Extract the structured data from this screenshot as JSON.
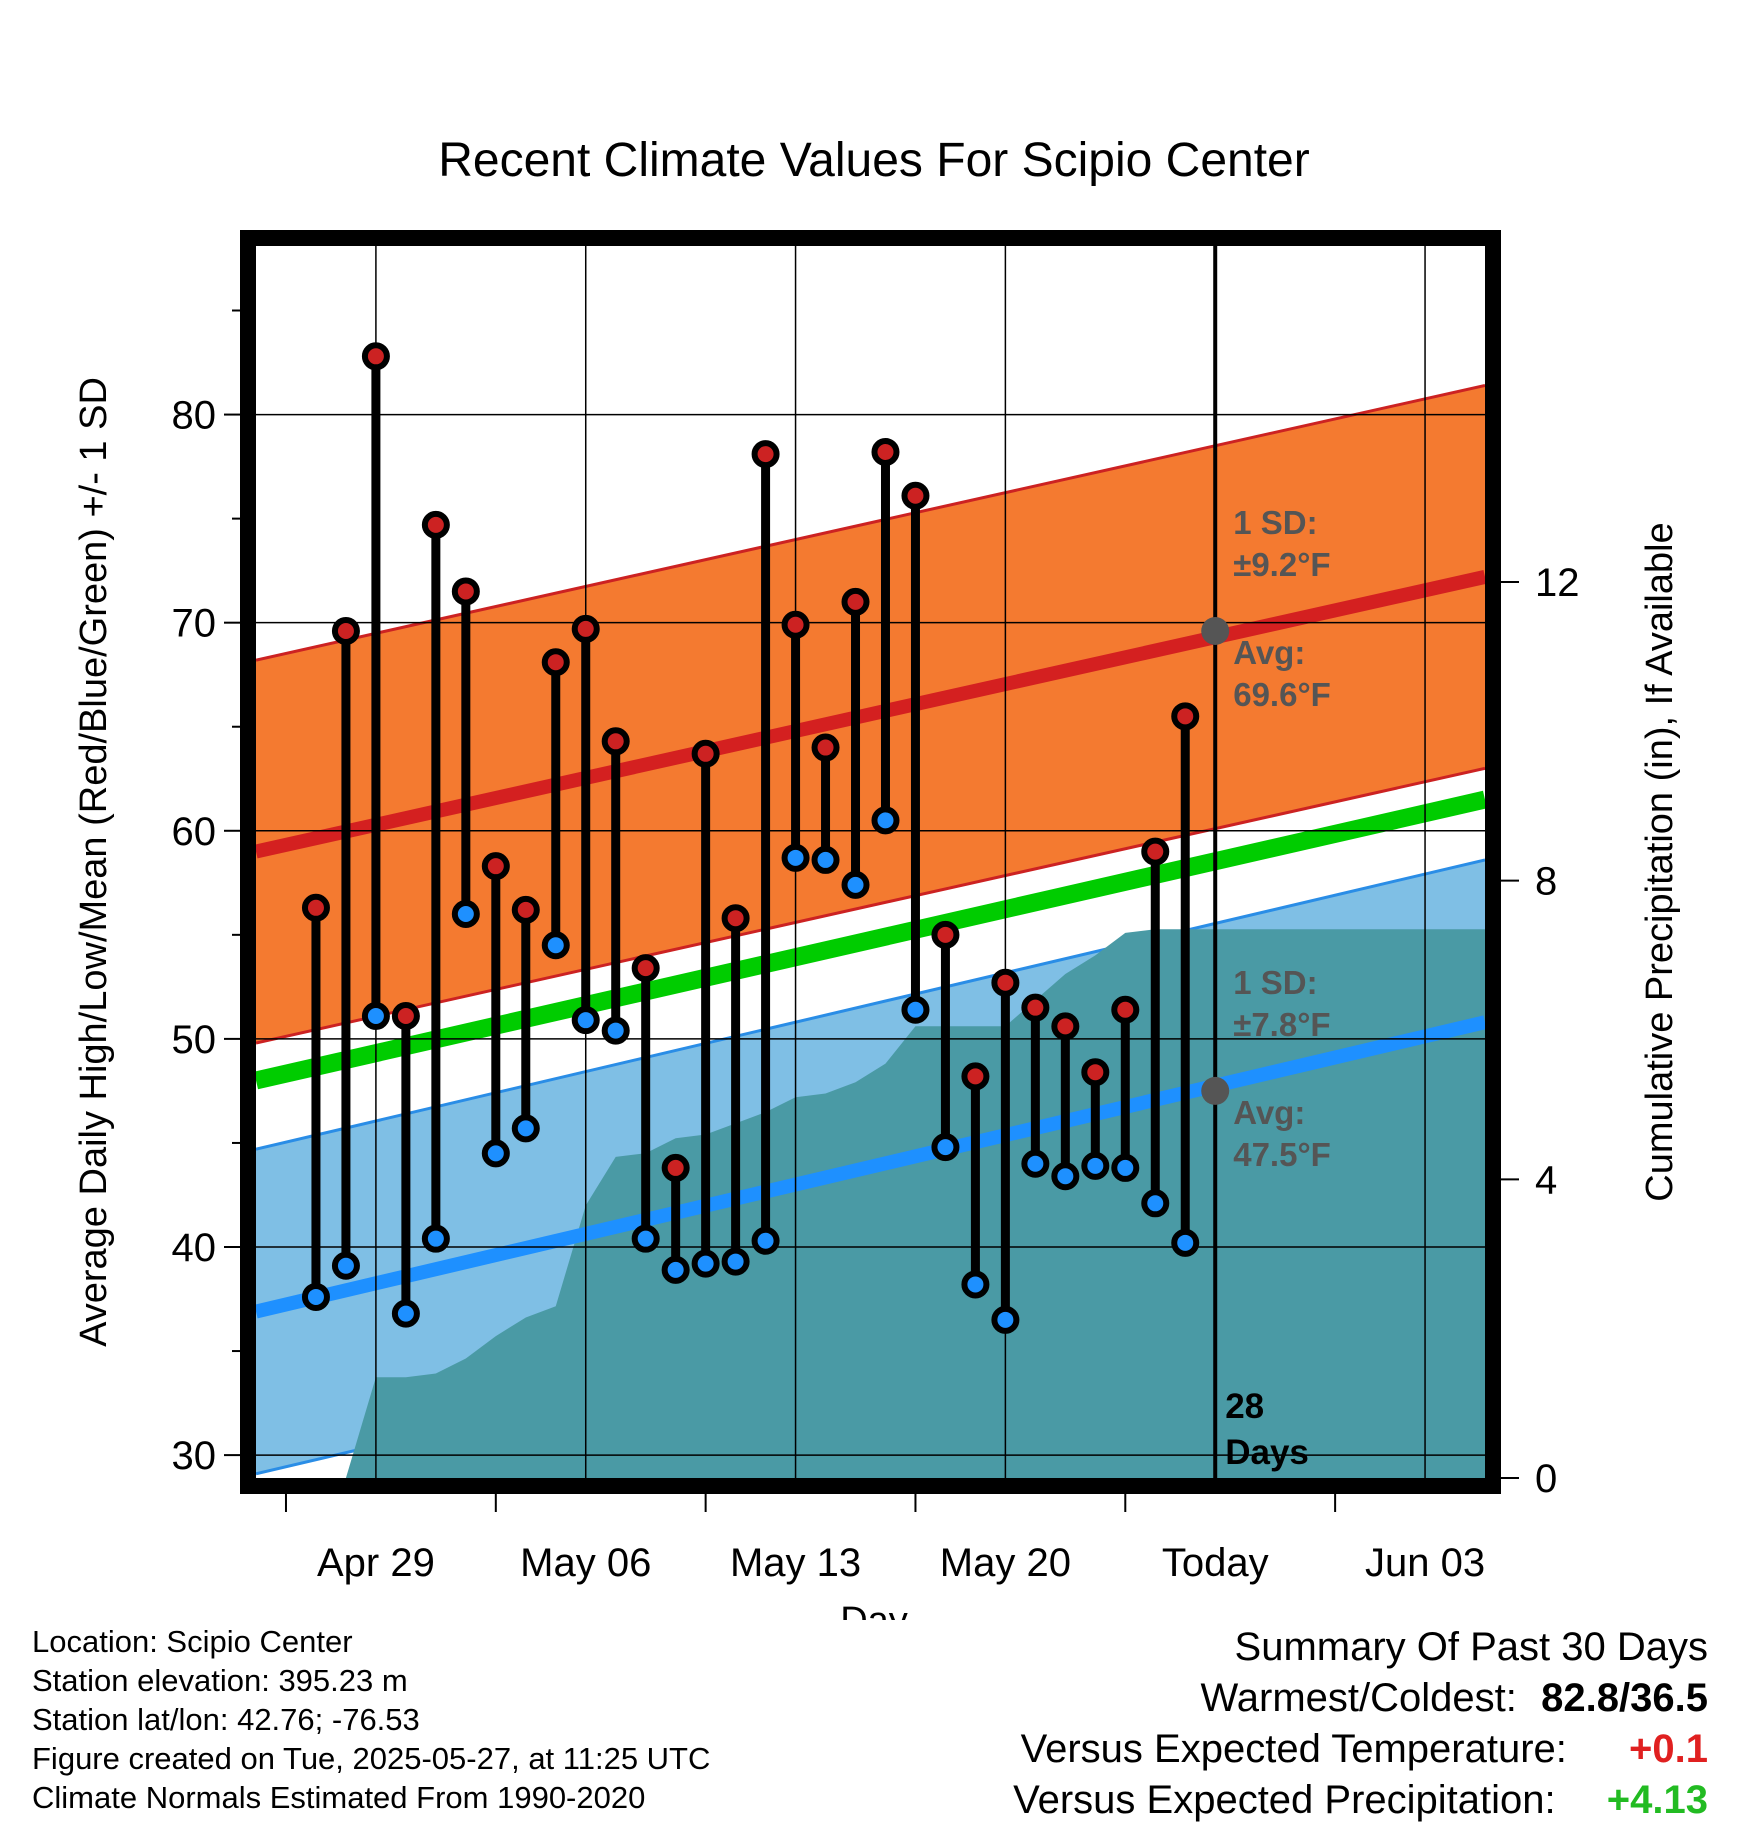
{
  "chart_data": {
    "type": "line",
    "title": "Recent Climate Values For Scipio Center",
    "xlabel": "Day",
    "ylabel": "Average Daily High/Low/Mean (Red/Blue/Green) +/- 1 SD",
    "y2label": "Cumulative Precipitation (in), If Available",
    "ylim": [
      28.9,
      88.1
    ],
    "y2lim": [
      0,
      16.5
    ],
    "y_ticks": [
      30,
      40,
      50,
      60,
      70,
      80
    ],
    "y2_ticks": [
      0,
      4,
      8,
      12
    ],
    "x_ticks": [
      {
        "date": "2025-04-29",
        "label": "Apr 29"
      },
      {
        "date": "2025-05-06",
        "label": "May 06"
      },
      {
        "date": "2025-05-13",
        "label": "May 13"
      },
      {
        "date": "2025-05-20",
        "label": "May 20"
      },
      {
        "date": "2025-05-27",
        "label": "Today"
      },
      {
        "date": "2025-06-03",
        "label": "Jun 03"
      }
    ],
    "xlim": [
      "2025-04-25",
      "2025-06-05"
    ],
    "today": "2025-05-27",
    "days_label_number": "28",
    "days_label_text": "Days",
    "normals": {
      "high_avg_start": 59.0,
      "high_avg_end": 72.2,
      "high_sd": 9.2,
      "low_avg_start": 36.9,
      "low_avg_end": 50.8,
      "low_sd": 7.8,
      "mean_start": 48.0,
      "mean_end": 61.5
    },
    "annotations": {
      "high_sd_label": "1 SD:",
      "high_sd_value": "±9.2°F",
      "high_avg_label": "Avg:",
      "high_avg_value": "69.6°F",
      "high_today_avg": 69.6,
      "low_sd_label": "1 SD:",
      "low_sd_value": "±7.8°F",
      "low_avg_label": "Avg:",
      "low_avg_value": "47.5°F",
      "low_today_avg": 47.5
    },
    "series": [
      {
        "name": "High",
        "values": [
          {
            "date": "2025-04-27",
            "value": 56.3
          },
          {
            "date": "2025-04-28",
            "value": 69.6
          },
          {
            "date": "2025-04-29",
            "value": 82.8
          },
          {
            "date": "2025-04-30",
            "value": 51.1
          },
          {
            "date": "2025-05-01",
            "value": 74.7
          },
          {
            "date": "2025-05-02",
            "value": 71.5
          },
          {
            "date": "2025-05-03",
            "value": 58.3
          },
          {
            "date": "2025-05-04",
            "value": 56.2
          },
          {
            "date": "2025-05-05",
            "value": 68.1
          },
          {
            "date": "2025-05-06",
            "value": 69.7
          },
          {
            "date": "2025-05-07",
            "value": 64.3
          },
          {
            "date": "2025-05-08",
            "value": 53.4
          },
          {
            "date": "2025-05-09",
            "value": 43.8
          },
          {
            "date": "2025-05-10",
            "value": 63.7
          },
          {
            "date": "2025-05-11",
            "value": 55.8
          },
          {
            "date": "2025-05-12",
            "value": 78.1
          },
          {
            "date": "2025-05-13",
            "value": 69.9
          },
          {
            "date": "2025-05-14",
            "value": 64.0
          },
          {
            "date": "2025-05-15",
            "value": 71.0
          },
          {
            "date": "2025-05-16",
            "value": 78.2
          },
          {
            "date": "2025-05-17",
            "value": 76.1
          },
          {
            "date": "2025-05-18",
            "value": 55.0
          },
          {
            "date": "2025-05-19",
            "value": 48.2
          },
          {
            "date": "2025-05-20",
            "value": 52.7
          },
          {
            "date": "2025-05-21",
            "value": 51.5
          },
          {
            "date": "2025-05-22",
            "value": 50.6
          },
          {
            "date": "2025-05-23",
            "value": 48.4
          },
          {
            "date": "2025-05-24",
            "value": 51.4
          },
          {
            "date": "2025-05-25",
            "value": 59.0
          },
          {
            "date": "2025-05-26",
            "value": 65.5
          }
        ]
      },
      {
        "name": "Low",
        "values": [
          {
            "date": "2025-04-27",
            "value": 37.6
          },
          {
            "date": "2025-04-28",
            "value": 39.1
          },
          {
            "date": "2025-04-29",
            "value": 51.1
          },
          {
            "date": "2025-04-30",
            "value": 36.8
          },
          {
            "date": "2025-05-01",
            "value": 40.4
          },
          {
            "date": "2025-05-02",
            "value": 56.0
          },
          {
            "date": "2025-05-03",
            "value": 44.5
          },
          {
            "date": "2025-05-04",
            "value": 45.7
          },
          {
            "date": "2025-05-05",
            "value": 54.5
          },
          {
            "date": "2025-05-06",
            "value": 50.9
          },
          {
            "date": "2025-05-07",
            "value": 50.4
          },
          {
            "date": "2025-05-08",
            "value": 40.4
          },
          {
            "date": "2025-05-09",
            "value": 38.9
          },
          {
            "date": "2025-05-10",
            "value": 39.2
          },
          {
            "date": "2025-05-11",
            "value": 39.3
          },
          {
            "date": "2025-05-12",
            "value": 40.3
          },
          {
            "date": "2025-05-13",
            "value": 58.7
          },
          {
            "date": "2025-05-14",
            "value": 58.6
          },
          {
            "date": "2025-05-15",
            "value": 57.4
          },
          {
            "date": "2025-05-16",
            "value": 60.5
          },
          {
            "date": "2025-05-17",
            "value": 51.4
          },
          {
            "date": "2025-05-18",
            "value": 44.8
          },
          {
            "date": "2025-05-19",
            "value": 38.2
          },
          {
            "date": "2025-05-20",
            "value": 36.5
          },
          {
            "date": "2025-05-21",
            "value": 44.0
          },
          {
            "date": "2025-05-22",
            "value": 43.4
          },
          {
            "date": "2025-05-23",
            "value": 43.9
          },
          {
            "date": "2025-05-24",
            "value": 43.8
          },
          {
            "date": "2025-05-25",
            "value": 42.1
          },
          {
            "date": "2025-05-26",
            "value": 40.2
          }
        ]
      }
    ],
    "cumulative_precipitation": [
      {
        "date": "2025-04-27",
        "value": 0.0
      },
      {
        "date": "2025-04-28",
        "value": 0.0
      },
      {
        "date": "2025-04-29",
        "value": 1.35
      },
      {
        "date": "2025-04-30",
        "value": 1.35
      },
      {
        "date": "2025-05-01",
        "value": 1.4
      },
      {
        "date": "2025-05-02",
        "value": 1.6
      },
      {
        "date": "2025-05-03",
        "value": 1.9
      },
      {
        "date": "2025-05-04",
        "value": 2.15
      },
      {
        "date": "2025-05-05",
        "value": 2.3
      },
      {
        "date": "2025-05-06",
        "value": 3.65
      },
      {
        "date": "2025-05-07",
        "value": 4.3
      },
      {
        "date": "2025-05-08",
        "value": 4.35
      },
      {
        "date": "2025-05-09",
        "value": 4.55
      },
      {
        "date": "2025-05-10",
        "value": 4.6
      },
      {
        "date": "2025-05-11",
        "value": 4.75
      },
      {
        "date": "2025-05-12",
        "value": 4.9
      },
      {
        "date": "2025-05-13",
        "value": 5.1
      },
      {
        "date": "2025-05-14",
        "value": 5.15
      },
      {
        "date": "2025-05-15",
        "value": 5.3
      },
      {
        "date": "2025-05-16",
        "value": 5.55
      },
      {
        "date": "2025-05-17",
        "value": 6.05
      },
      {
        "date": "2025-05-18",
        "value": 6.05
      },
      {
        "date": "2025-05-19",
        "value": 6.05
      },
      {
        "date": "2025-05-20",
        "value": 6.05
      },
      {
        "date": "2025-05-21",
        "value": 6.4
      },
      {
        "date": "2025-05-22",
        "value": 6.75
      },
      {
        "date": "2025-05-23",
        "value": 7.0
      },
      {
        "date": "2025-05-24",
        "value": 7.3
      },
      {
        "date": "2025-05-25",
        "value": 7.35
      },
      {
        "date": "2025-05-26",
        "value": 7.35
      },
      {
        "date": "2025-05-27",
        "value": 7.35
      },
      {
        "date": "2025-06-05",
        "value": 7.35
      }
    ],
    "colors": {
      "high_band": "#f47a30",
      "high_edge": "#cc2222",
      "high_avg": "#d42020",
      "low_band": "#7fbfe5",
      "low_edge": "#2a8de6",
      "low_avg": "#1e90ff",
      "mean_line": "#00cc00",
      "precip_fill": "#4a9aa5",
      "high_dot": "#cc2222",
      "low_dot": "#1e90ff",
      "annotation_text": "#555555",
      "avg_marker": "#555555"
    }
  },
  "footer": {
    "location": "Location: Scipio Center",
    "elevation": "Station elevation: 395.23 m",
    "latlon": "Station lat/lon: 42.76; -76.53",
    "created": "Figure created on Tue, 2025-05-27, at 11:25 UTC",
    "normals": "Climate Normals Estimated From 1990-2020"
  },
  "summary": {
    "title": "Summary Of Past 30 Days",
    "warm_cold_label": "Warmest/Coldest:",
    "warm_cold_value": "82.8/36.5",
    "temp_label": "Versus Expected Temperature:",
    "temp_value": "+0.1",
    "temp_color": "#e02020",
    "precip_label": "Versus Expected Precipitation:",
    "precip_value": "+4.13",
    "precip_color": "#22bb22"
  }
}
